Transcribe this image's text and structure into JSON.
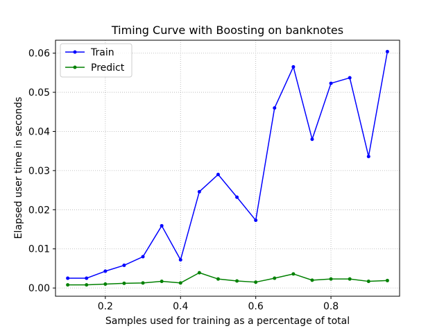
{
  "chart_data": {
    "type": "line",
    "title": "Timing Curve with Boosting on banknotes",
    "xlabel": "Samples used for training as a percentage of total",
    "ylabel": "Elapsed user time in seconds",
    "xlim": [
      0.0675,
      0.9825
    ],
    "ylim": [
      -0.0021,
      0.0633
    ],
    "xticks": [
      0.2,
      0.4,
      0.6,
      0.8
    ],
    "xtick_labels": [
      "0.2",
      "0.4",
      "0.6",
      "0.8"
    ],
    "yticks": [
      0.0,
      0.01,
      0.02,
      0.03,
      0.04,
      0.05,
      0.06
    ],
    "ytick_labels": [
      "0.00",
      "0.01",
      "0.02",
      "0.03",
      "0.04",
      "0.05",
      "0.06"
    ],
    "grid": true,
    "legend_position": "top-left",
    "x": [
      0.1,
      0.15,
      0.2,
      0.25,
      0.3,
      0.35,
      0.4,
      0.45,
      0.5,
      0.55,
      0.6,
      0.65,
      0.7,
      0.75,
      0.8,
      0.85,
      0.9,
      0.95
    ],
    "series": [
      {
        "name": "Train",
        "color": "#0000ff",
        "values": [
          0.0025,
          0.0025,
          0.0043,
          0.0058,
          0.008,
          0.0159,
          0.0072,
          0.0246,
          0.029,
          0.0232,
          0.0173,
          0.046,
          0.0565,
          0.038,
          0.0523,
          0.0537,
          0.0336,
          0.0604
        ]
      },
      {
        "name": "Predict",
        "color": "#008000",
        "values": [
          0.0008,
          0.0008,
          0.001,
          0.0012,
          0.0013,
          0.0017,
          0.0013,
          0.0039,
          0.0023,
          0.0018,
          0.0015,
          0.0025,
          0.0036,
          0.002,
          0.0023,
          0.0023,
          0.0017,
          0.0019
        ]
      }
    ]
  }
}
